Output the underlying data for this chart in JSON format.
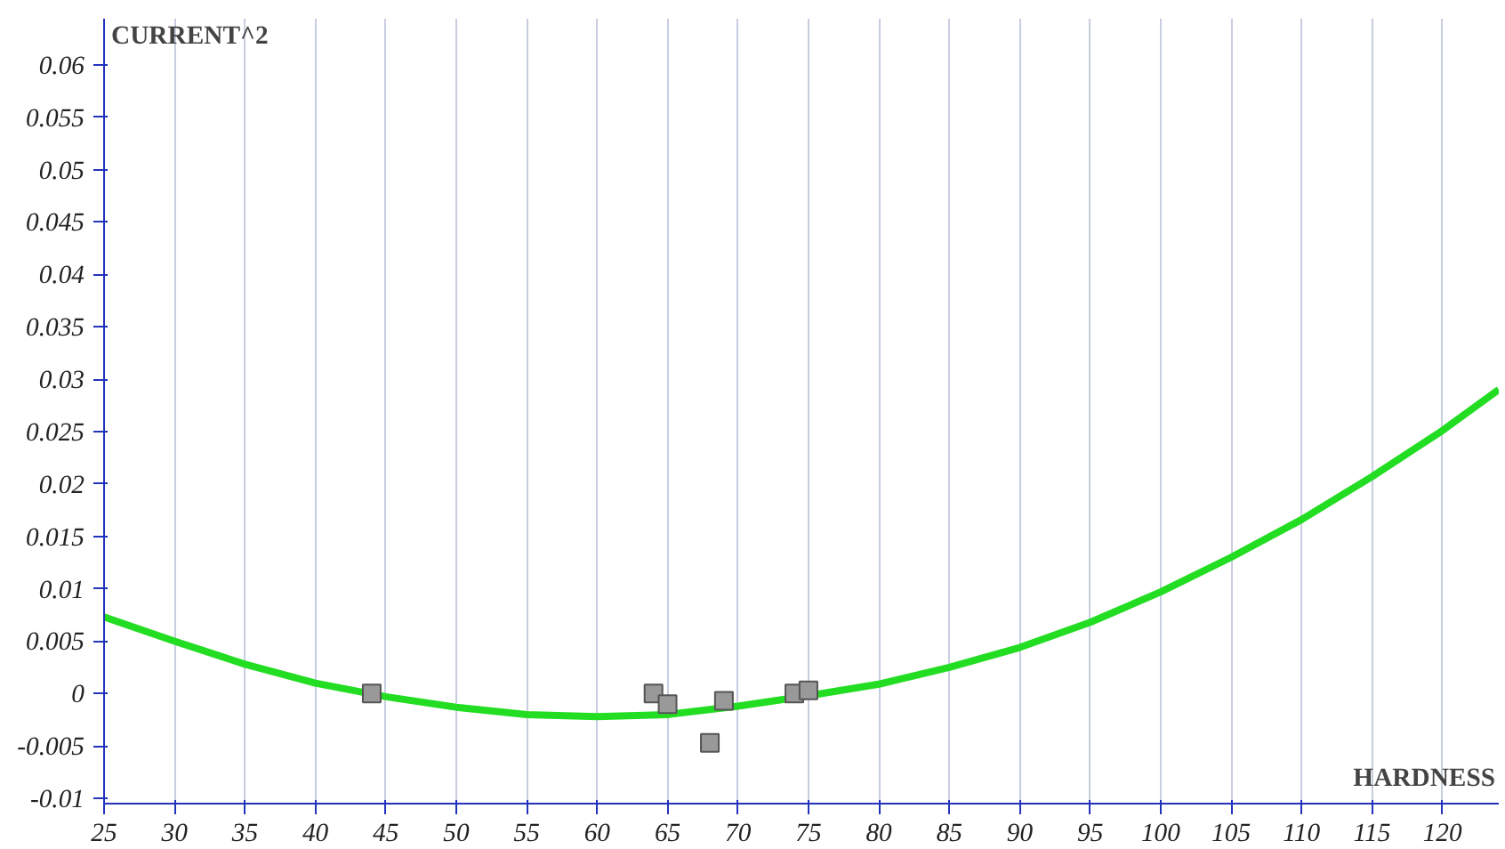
{
  "chart_data": {
    "type": "scatter",
    "xlabel": "HARDNESS",
    "ylabel": "CURRENT^2",
    "xlim": [
      25,
      124
    ],
    "ylim": [
      -0.0105,
      0.0644
    ],
    "xticks": [
      25,
      30,
      35,
      40,
      45,
      50,
      55,
      60,
      65,
      70,
      75,
      80,
      85,
      90,
      95,
      100,
      105,
      110,
      115,
      120
    ],
    "yticks": [
      -0.01,
      -0.005,
      0,
      0.005,
      0.01,
      0.015,
      0.02,
      0.025,
      0.03,
      0.035,
      0.04,
      0.045,
      0.05,
      0.055,
      0.06
    ],
    "grid": "x",
    "marker": "square",
    "line_style": "solid",
    "series": [
      {
        "type": "line",
        "marker": "none",
        "color": "#22dd22",
        "x": [
          25,
          30,
          35,
          40,
          45,
          50,
          55,
          60,
          65,
          70,
          75,
          80,
          85,
          90,
          95,
          100,
          105,
          110,
          115,
          120,
          124
        ],
        "values": [
          0.0073,
          0.005,
          0.0028,
          0.001,
          -0.0003,
          -0.0013,
          -0.002,
          -0.0022,
          -0.002,
          -0.0012,
          -0.0002,
          0.0009,
          0.0025,
          0.0044,
          0.0068,
          0.0097,
          0.013,
          0.0166,
          0.0207,
          0.0251,
          0.029
        ]
      },
      {
        "color": "#999999",
        "x": [
          44,
          64,
          65,
          68,
          69,
          74,
          75
        ],
        "values": [
          0,
          0,
          -0.001,
          -0.0047,
          -0.0007,
          0,
          0.0003
        ]
      }
    ]
  }
}
